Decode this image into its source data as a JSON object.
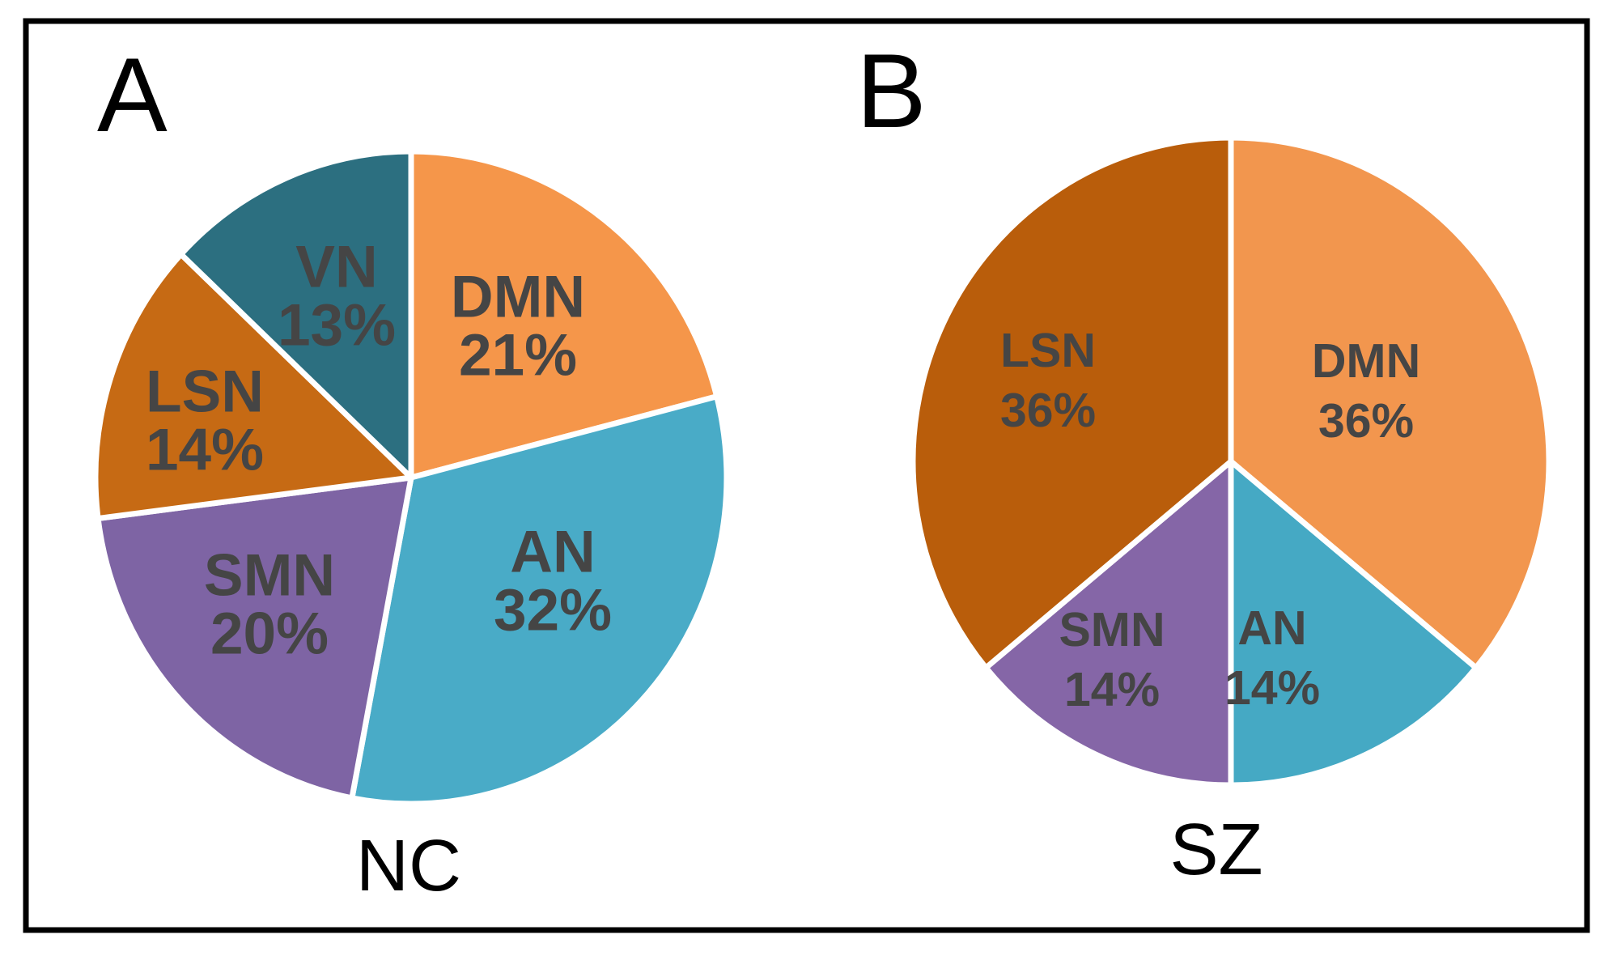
{
  "background_color": "#FFFFFF",
  "frame_color": "#000000",
  "slice_label_text_color": "#454545",
  "panel_text_color": "#000000",
  "chart_data": [
    {
      "type": "pie",
      "panel_label": "A",
      "title": "NC",
      "direction": "clockwise",
      "start_angle_deg": 0,
      "legend_position": "none",
      "label_position": "inside",
      "categories": [
        "DMN",
        "AN",
        "SMN",
        "LSN",
        "VN"
      ],
      "values": [
        21,
        32,
        20,
        14,
        13
      ],
      "slices": [
        {
          "name": "DMN",
          "value": 21,
          "label": "DMN",
          "pct_label": "21%",
          "color": "#F5964A"
        },
        {
          "name": "AN",
          "value": 32,
          "label": "AN",
          "pct_label": "32%",
          "color": "#49ABC7"
        },
        {
          "name": "SMN",
          "value": 20,
          "label": "SMN",
          "pct_label": "20%",
          "color": "#7E64A4"
        },
        {
          "name": "LSN",
          "value": 14,
          "label": "LSN",
          "pct_label": "14%",
          "color": "#C66A14"
        },
        {
          "name": "VN",
          "value": 13,
          "label": "VN",
          "pct_label": "13%",
          "color": "#2C6F80"
        }
      ]
    },
    {
      "type": "pie",
      "panel_label": "B",
      "title": "SZ",
      "direction": "clockwise",
      "start_angle_deg": 0,
      "legend_position": "none",
      "label_position": "inside",
      "categories": [
        "DMN",
        "AN",
        "SMN",
        "LSN"
      ],
      "values": [
        36,
        14,
        14,
        36
      ],
      "slices": [
        {
          "name": "DMN",
          "value": 36,
          "label": "DMN",
          "pct_label": "36%",
          "color": "#F2964E"
        },
        {
          "name": "AN",
          "value": 14,
          "label": "AN",
          "pct_label": "14%",
          "color": "#45A9C4"
        },
        {
          "name": "SMN",
          "value": 14,
          "label": "SMN",
          "pct_label": "14%",
          "color": "#8566A7"
        },
        {
          "name": "LSN",
          "value": 36,
          "label": "LSN",
          "pct_label": "36%",
          "color": "#B95D0B"
        }
      ]
    }
  ]
}
